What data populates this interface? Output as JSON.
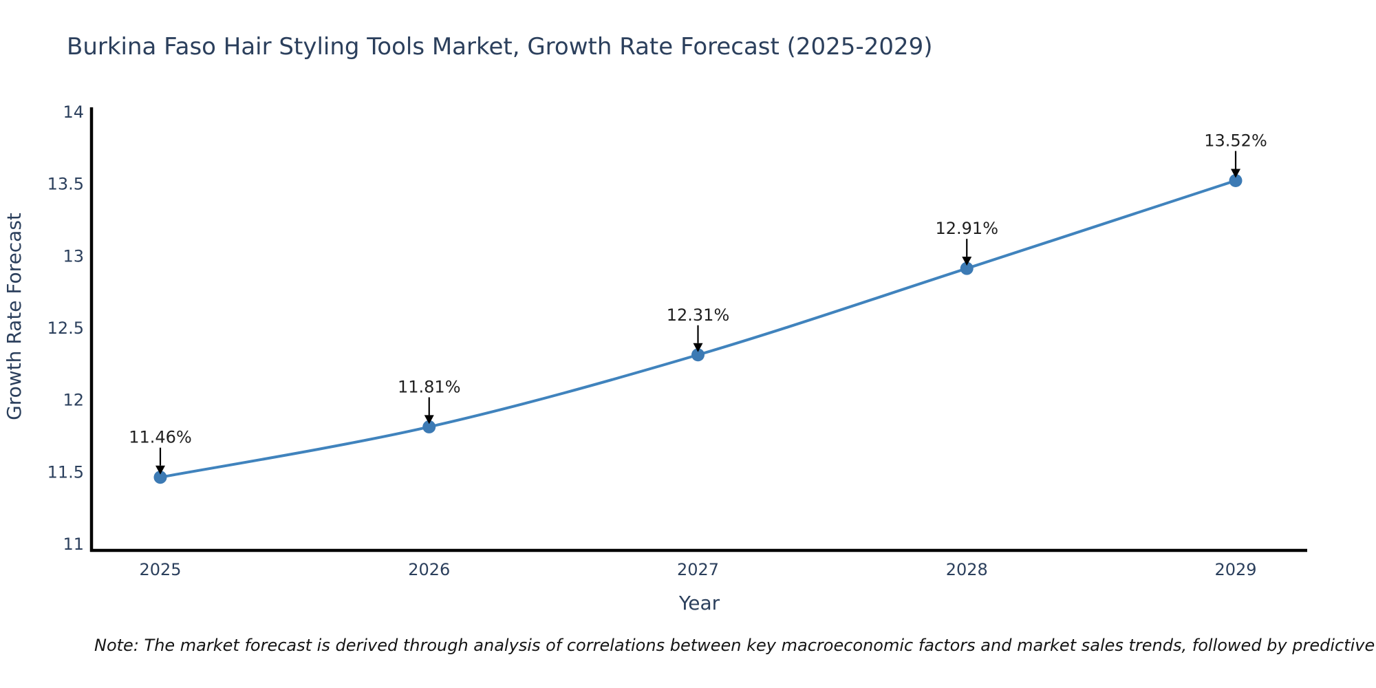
{
  "title": "Burkina Faso Hair Styling Tools Market, Growth Rate Forecast (2025-2029)",
  "note": "Note: The market forecast is derived through analysis of correlations between key macroeconomic factors and market sales trends, followed by predictive modeling to project future sales.",
  "chart_data": {
    "type": "line",
    "title": "Burkina Faso Hair Styling Tools Market, Growth Rate Forecast (2025-2029)",
    "xlabel": "Year",
    "ylabel": "Growth Rate Forecast",
    "categories": [
      "2025",
      "2026",
      "2027",
      "2028",
      "2029"
    ],
    "values": [
      11.46,
      11.81,
      12.31,
      12.91,
      13.52
    ],
    "point_labels": [
      "11.46%",
      "11.81%",
      "12.31%",
      "12.91%",
      "13.52%"
    ],
    "ylim": [
      11,
      14
    ],
    "yticks": [
      "11",
      "11.5",
      "12",
      "12.5",
      "13",
      "13.5",
      "14"
    ],
    "grid": false,
    "legend_position": "none",
    "line_shape": "spline",
    "annotation_style": "value label with downward black arrow above each point",
    "colors": {
      "line": "#4083bd",
      "marker": "#3c7ab4",
      "axis": "#000000",
      "text": "#2b3f5c",
      "annotation": "#1f1f1f"
    }
  }
}
